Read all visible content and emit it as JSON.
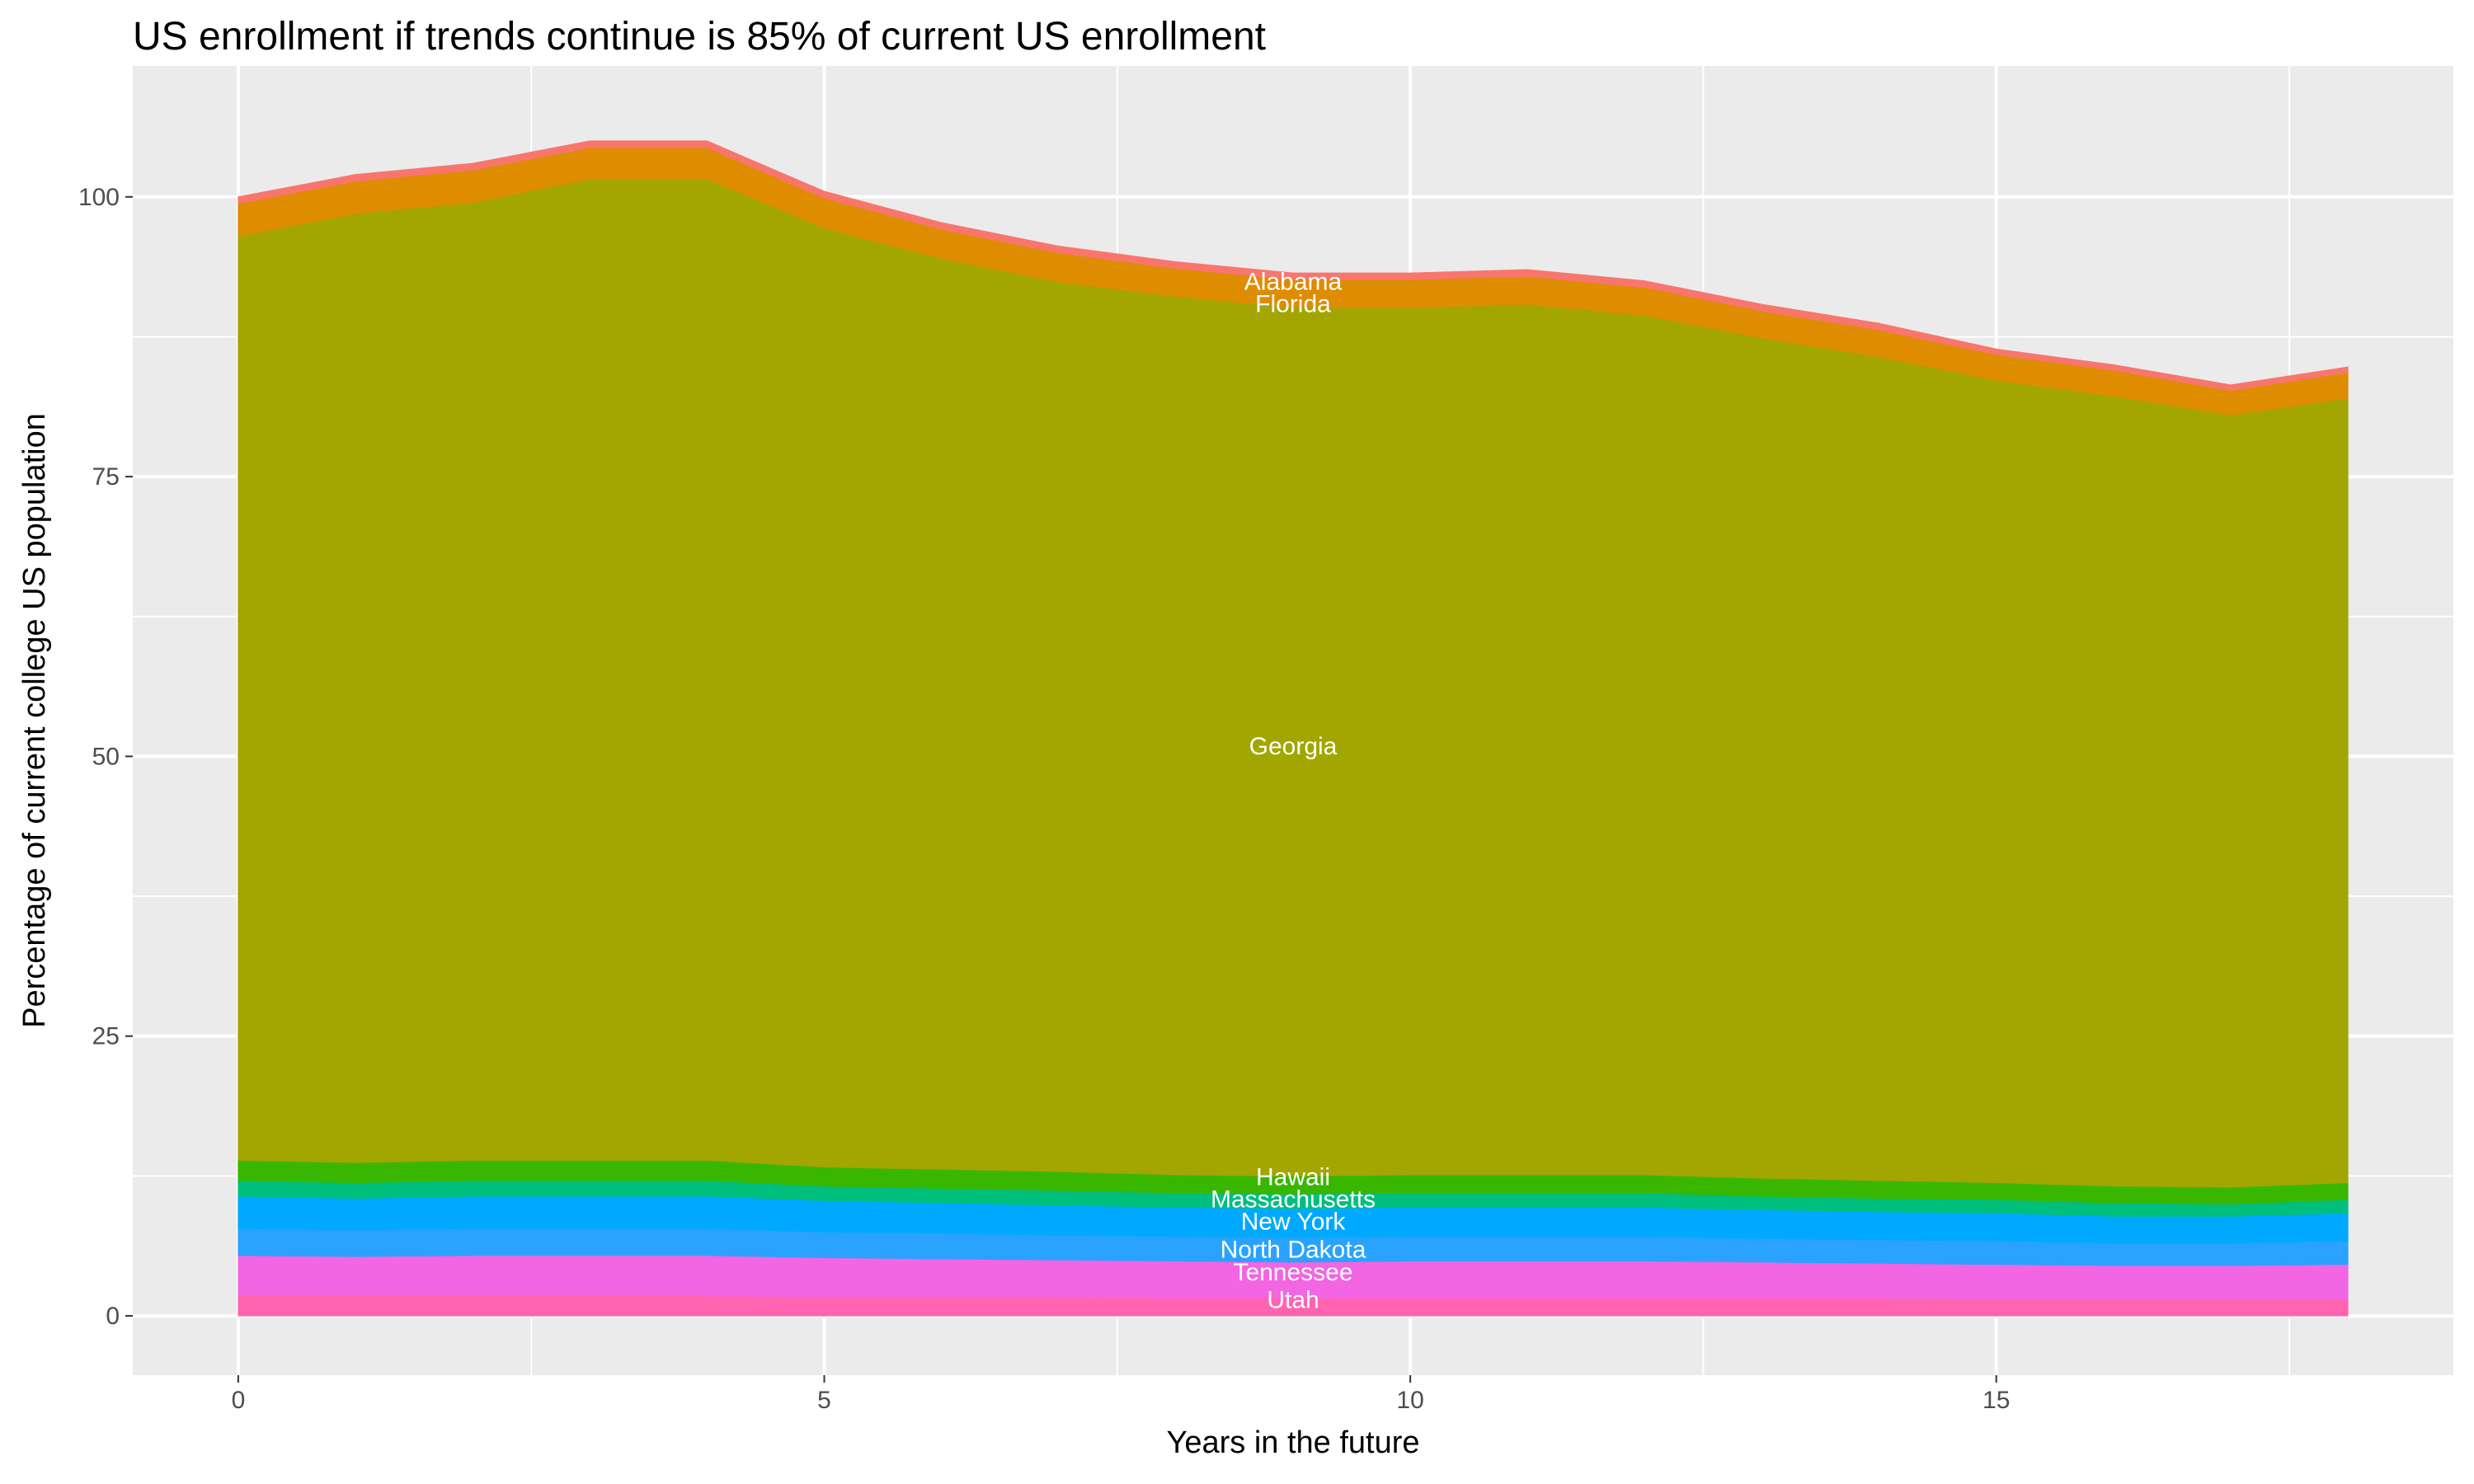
{
  "chart_data": {
    "type": "area",
    "stacked": true,
    "title": "US enrollment if trends continue is 85% of current US enrollment",
    "xlabel": "Years in the future",
    "ylabel": "Percentage of current college US population",
    "x": [
      0,
      1,
      2,
      3,
      4,
      5,
      6,
      7,
      8,
      9,
      10,
      11,
      12,
      13,
      14,
      15,
      16,
      17,
      18
    ],
    "xlim": [
      -0.9,
      18.9
    ],
    "ylim": [
      -5.3,
      111.7
    ],
    "xticks": [
      0,
      5,
      10,
      15
    ],
    "yticks": [
      0,
      25,
      50,
      75,
      100
    ],
    "grid": true,
    "legend": "none",
    "background": "#EBEBEB",
    "series": [
      {
        "name": "Utah",
        "color": "#FF64B0",
        "label_y": 1.5,
        "values": [
          1.8,
          1.8,
          1.8,
          1.8,
          1.8,
          1.7,
          1.7,
          1.7,
          1.6,
          1.6,
          1.6,
          1.6,
          1.6,
          1.6,
          1.6,
          1.5,
          1.5,
          1.5,
          1.5
        ]
      },
      {
        "name": "Tennessee",
        "color": "#F265E3",
        "label_y": 4,
        "values": [
          3.6,
          3.5,
          3.6,
          3.6,
          3.6,
          3.5,
          3.4,
          3.3,
          3.3,
          3.2,
          3.3,
          3.3,
          3.3,
          3.2,
          3.1,
          3.1,
          3.0,
          3.0,
          3.1
        ]
      },
      {
        "name": "North Dakota",
        "color": "#2AA2FF",
        "label_y": 6,
        "values": [
          2.4,
          2.4,
          2.4,
          2.4,
          2.4,
          2.3,
          2.3,
          2.2,
          2.2,
          2.2,
          2.2,
          2.2,
          2.2,
          2.1,
          2.1,
          2.1,
          2.0,
          2.0,
          2.1
        ]
      },
      {
        "name": "New York",
        "color": "#00A9FF",
        "label_y": 8.5,
        "values": [
          2.9,
          2.8,
          2.9,
          2.9,
          2.9,
          2.8,
          2.7,
          2.7,
          2.6,
          2.6,
          2.6,
          2.6,
          2.6,
          2.6,
          2.5,
          2.5,
          2.4,
          2.4,
          2.5
        ]
      },
      {
        "name": "Massachusetts",
        "color": "#00BF7D",
        "label_y": 10.5,
        "values": [
          1.4,
          1.4,
          1.4,
          1.4,
          1.4,
          1.3,
          1.3,
          1.3,
          1.3,
          1.3,
          1.3,
          1.3,
          1.3,
          1.2,
          1.2,
          1.2,
          1.2,
          1.1,
          1.2
        ]
      },
      {
        "name": "Hawaii",
        "color": "#39B600",
        "label_y": 12.5,
        "values": [
          1.8,
          1.8,
          1.8,
          1.8,
          1.8,
          1.7,
          1.7,
          1.7,
          1.6,
          1.6,
          1.6,
          1.6,
          1.6,
          1.6,
          1.6,
          1.5,
          1.5,
          1.5,
          1.5
        ]
      },
      {
        "name": "Georgia",
        "color": "#A3A500",
        "label_y": 51,
        "values": [
          82.6,
          84.8,
          85.6,
          87.7,
          87.7,
          83.9,
          81.4,
          79.5,
          78.5,
          77.6,
          77.5,
          77.8,
          76.8,
          75.1,
          73.6,
          71.7,
          70.6,
          69.0,
          70.1
        ]
      },
      {
        "name": "Florida",
        "color": "#DE8C00",
        "label_y": 90.5,
        "values": [
          2.9,
          2.9,
          2.9,
          2.8,
          2.8,
          2.7,
          2.6,
          2.6,
          2.5,
          2.5,
          2.5,
          2.5,
          2.5,
          2.4,
          2.4,
          2.3,
          2.3,
          2.2,
          2.3
        ]
      },
      {
        "name": "Alabama",
        "color": "#F8766D",
        "label_y": 92.5,
        "values": [
          0.6,
          0.6,
          0.6,
          0.6,
          0.6,
          0.6,
          0.6,
          0.6,
          0.6,
          0.6,
          0.6,
          0.6,
          0.6,
          0.6,
          0.6,
          0.5,
          0.5,
          0.5,
          0.5
        ]
      }
    ],
    "label_x": 9
  }
}
